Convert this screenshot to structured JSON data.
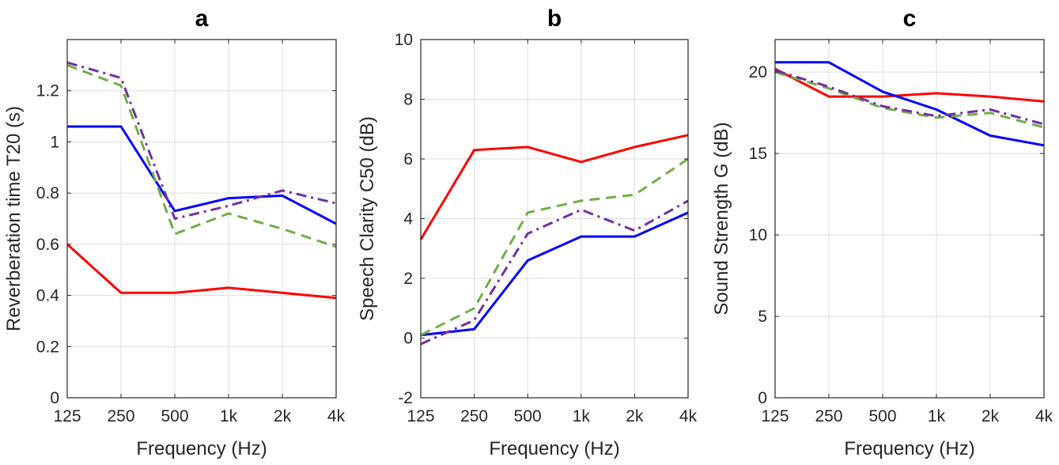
{
  "chart_data": [
    {
      "type": "line",
      "panel": "a",
      "title": "a",
      "xlabel": "Frequency (Hz)",
      "ylabel": "Reverberation time T20 (s)",
      "categories": [
        "125",
        "250",
        "500",
        "1k",
        "2k",
        "4k"
      ],
      "ylim": [
        0,
        1.4
      ],
      "yticks": [
        0,
        0.2,
        0.4,
        0.6,
        0.8,
        1,
        1.2
      ],
      "ytick_labels": [
        "0",
        "0.2",
        "0.4",
        "0.6",
        "0.8",
        "1",
        "1.2"
      ],
      "grid": true,
      "series": [
        {
          "name": "red solid",
          "color": "#ff0000",
          "dash": "solid",
          "values": [
            0.6,
            0.41,
            0.41,
            0.43,
            0.41,
            0.39
          ]
        },
        {
          "name": "blue solid",
          "color": "#0000ff",
          "dash": "solid",
          "values": [
            1.06,
            1.06,
            0.73,
            0.78,
            0.79,
            0.68
          ]
        },
        {
          "name": "green dashed",
          "color": "#70ad47",
          "dash": "dashed",
          "values": [
            1.3,
            1.22,
            0.64,
            0.72,
            0.66,
            0.59
          ]
        },
        {
          "name": "purple dash-dot",
          "color": "#7030a0",
          "dash": "dashdot",
          "values": [
            1.31,
            1.25,
            0.7,
            0.75,
            0.81,
            0.76
          ]
        }
      ]
    },
    {
      "type": "line",
      "panel": "b",
      "title": "b",
      "xlabel": "Frequency (Hz)",
      "ylabel": "Speech Clarity C50 (dB)",
      "categories": [
        "125",
        "250",
        "500",
        "1k",
        "2k",
        "4k"
      ],
      "ylim": [
        -2,
        10
      ],
      "yticks": [
        -2,
        0,
        2,
        4,
        6,
        8,
        10
      ],
      "ytick_labels": [
        "-2",
        "0",
        "2",
        "4",
        "6",
        "8",
        "10"
      ],
      "grid": true,
      "series": [
        {
          "name": "red solid",
          "color": "#ff0000",
          "dash": "solid",
          "values": [
            3.3,
            6.3,
            6.4,
            5.9,
            6.4,
            6.8
          ]
        },
        {
          "name": "blue solid",
          "color": "#0000ff",
          "dash": "solid",
          "values": [
            0.1,
            0.3,
            2.6,
            3.4,
            3.4,
            4.2
          ]
        },
        {
          "name": "green dashed",
          "color": "#70ad47",
          "dash": "dashed",
          "values": [
            0.1,
            1.0,
            4.2,
            4.6,
            4.8,
            6.0
          ]
        },
        {
          "name": "purple dash-dot",
          "color": "#7030a0",
          "dash": "dashdot",
          "values": [
            -0.2,
            0.6,
            3.5,
            4.3,
            3.6,
            4.6
          ]
        }
      ]
    },
    {
      "type": "line",
      "panel": "c",
      "title": "c",
      "xlabel": "Frequency (Hz)",
      "ylabel": "Sound Strength G (dB)",
      "categories": [
        "125",
        "250",
        "500",
        "1k",
        "2k",
        "4k"
      ],
      "ylim": [
        0,
        22
      ],
      "yticks": [
        0,
        5,
        10,
        15,
        20
      ],
      "ytick_labels": [
        "0",
        "5",
        "10",
        "15",
        "20"
      ],
      "grid": true,
      "series": [
        {
          "name": "red solid",
          "color": "#ff0000",
          "dash": "solid",
          "values": [
            20.2,
            18.5,
            18.5,
            18.7,
            18.5,
            18.2
          ]
        },
        {
          "name": "blue solid",
          "color": "#0000ff",
          "dash": "solid",
          "values": [
            20.6,
            20.6,
            18.8,
            17.7,
            16.1,
            15.5
          ]
        },
        {
          "name": "green dashed",
          "color": "#70ad47",
          "dash": "dashed",
          "values": [
            20.0,
            19.0,
            17.8,
            17.2,
            17.5,
            16.6
          ]
        },
        {
          "name": "purple dash-dot",
          "color": "#7030a0",
          "dash": "dashdot",
          "values": [
            20.1,
            19.1,
            17.9,
            17.3,
            17.7,
            16.8
          ]
        }
      ]
    }
  ]
}
